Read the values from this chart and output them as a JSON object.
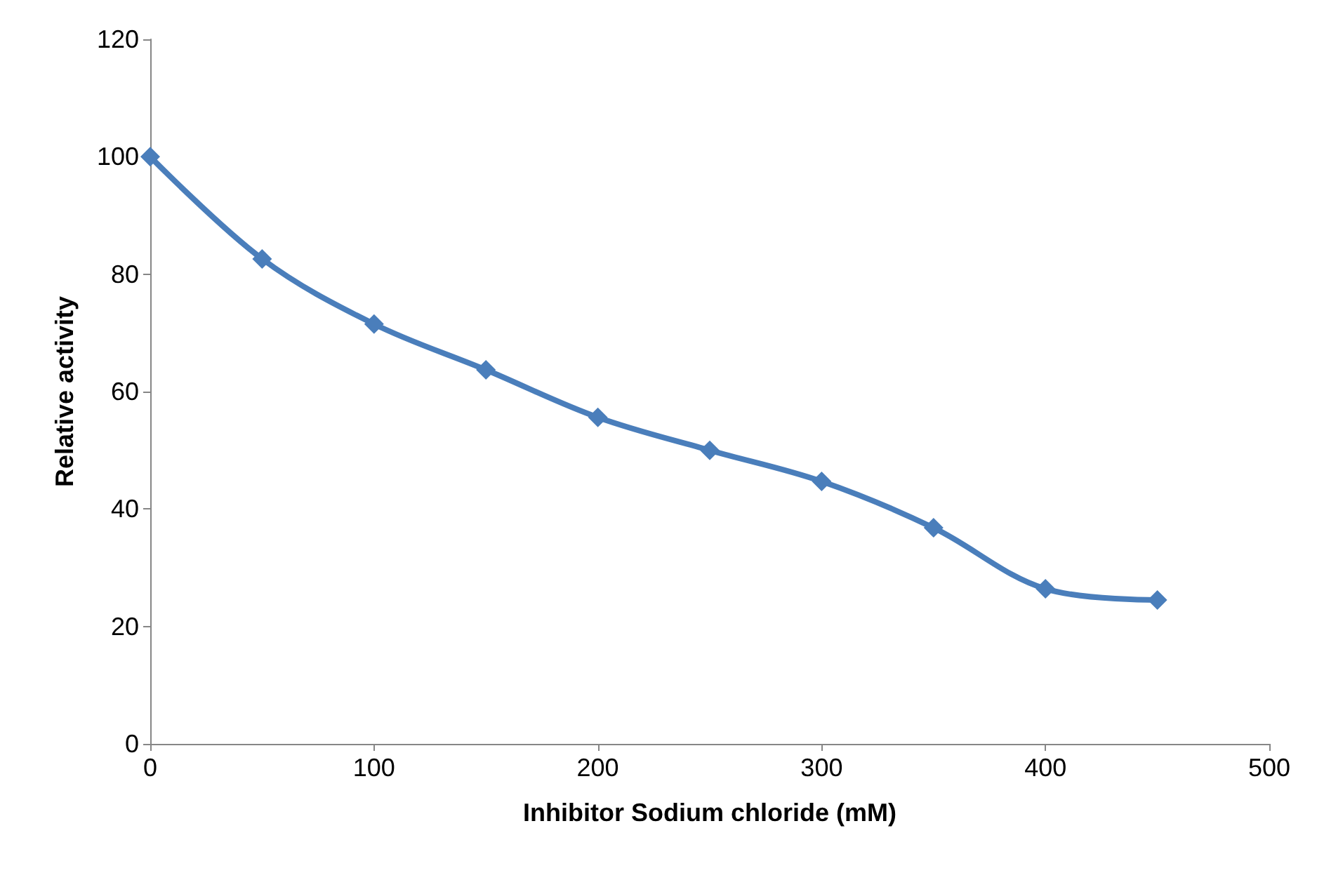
{
  "chart_data": {
    "type": "line",
    "xlabel": "Inhibitor Sodium chloride (mM)",
    "ylabel": "Relative activity",
    "x": [
      0,
      50,
      100,
      150,
      200,
      250,
      300,
      350,
      400,
      450
    ],
    "series": [
      {
        "color": "#4a7ebb",
        "values": [
          100,
          82.6,
          71.5,
          63.7,
          55.6,
          50.0,
          44.7,
          36.8,
          26.4,
          24.5
        ]
      }
    ],
    "xlim": [
      0,
      500
    ],
    "xticks": [
      0,
      100,
      200,
      300,
      400,
      500
    ],
    "ylim": [
      0,
      120
    ],
    "yticks": [
      0,
      20,
      40,
      60,
      80,
      100,
      120
    ],
    "grid": false,
    "marker": "diamond",
    "line_style": "solid"
  }
}
